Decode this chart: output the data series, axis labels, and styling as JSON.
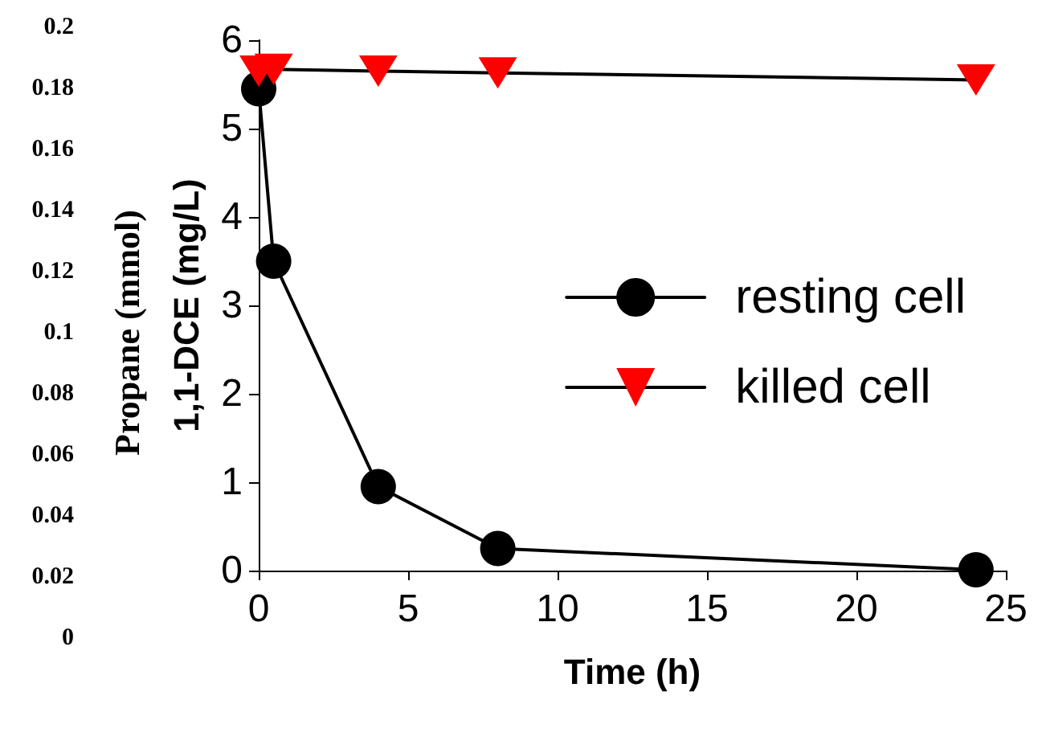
{
  "chart_data": {
    "type": "line",
    "xlabel": "Time (h)",
    "ylabel": "1,1-DCE (mg/L)",
    "y2label": "Propane (mmol)",
    "x": [
      0,
      0.5,
      4,
      8,
      24
    ],
    "series": [
      {
        "name": "resting cell",
        "color": "#000000",
        "marker": "circle",
        "values": [
          5.45,
          3.5,
          0.95,
          0.25,
          0.01
        ]
      },
      {
        "name": "killed cell",
        "color": "#ff0000",
        "marker": "triangle",
        "values": [
          5.65,
          5.67,
          5.65,
          5.63,
          5.55
        ]
      }
    ],
    "xlim": [
      0,
      25
    ],
    "xticks": [
      0,
      5,
      10,
      15,
      20,
      25
    ],
    "ylim": [
      0,
      6
    ],
    "yticks": [
      0,
      1,
      2,
      3,
      4,
      5,
      6
    ],
    "y2lim": [
      0,
      0.2
    ],
    "y2ticks": [
      0,
      0.02,
      0.04,
      0.06,
      0.08,
      0.1,
      0.12,
      0.14,
      0.16,
      0.18,
      0.2
    ],
    "grid": false,
    "legend": "right",
    "line_style": "solid"
  }
}
